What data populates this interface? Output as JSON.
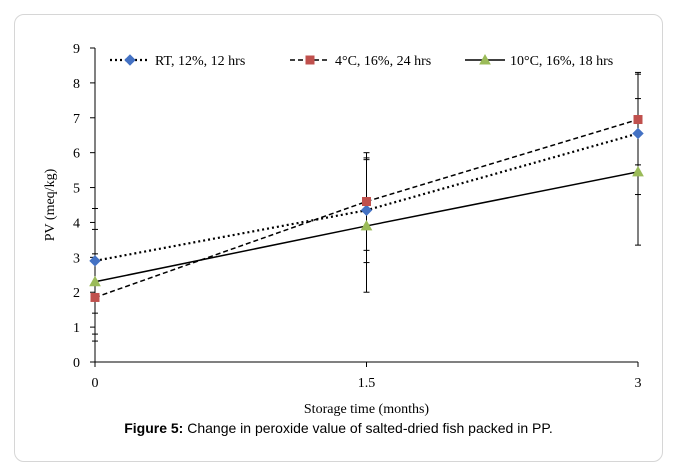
{
  "caption": {
    "label": "Figure 5:",
    "text": "Change in peroxide value of salted-dried fish packed in PP."
  },
  "chart_data": {
    "type": "line",
    "title": "",
    "xlabel": "Storage time (months)",
    "ylabel": "PV (meq/kg)",
    "x": [
      0,
      1.5,
      3
    ],
    "xticks": [
      "0",
      "1.5",
      "3"
    ],
    "ylim": [
      0,
      9
    ],
    "yticks": [
      "0",
      "1",
      "2",
      "3",
      "4",
      "5",
      "6",
      "7",
      "8",
      "9"
    ],
    "grid": false,
    "legend_position": "top",
    "series": [
      {
        "name": "RT, 12%, 12 hrs",
        "values": [
          2.9,
          4.35,
          6.55
        ],
        "error": [
          1.5,
          1.5,
          1.75
        ],
        "color": "#4472C4",
        "marker": "diamond",
        "line": "dotted"
      },
      {
        "name": "4°C, 16%, 24 hrs",
        "values": [
          1.85,
          4.6,
          6.95
        ],
        "error": [
          1.25,
          1.4,
          1.3
        ],
        "color": "#C0504D",
        "marker": "square",
        "line": "dashed"
      },
      {
        "name": "10°C, 16%, 18 hrs",
        "values": [
          2.3,
          3.9,
          5.45
        ],
        "error": [
          1.5,
          1.9,
          2.1
        ],
        "color": "#9BBB59",
        "marker": "triangle",
        "line": "solid"
      }
    ]
  }
}
